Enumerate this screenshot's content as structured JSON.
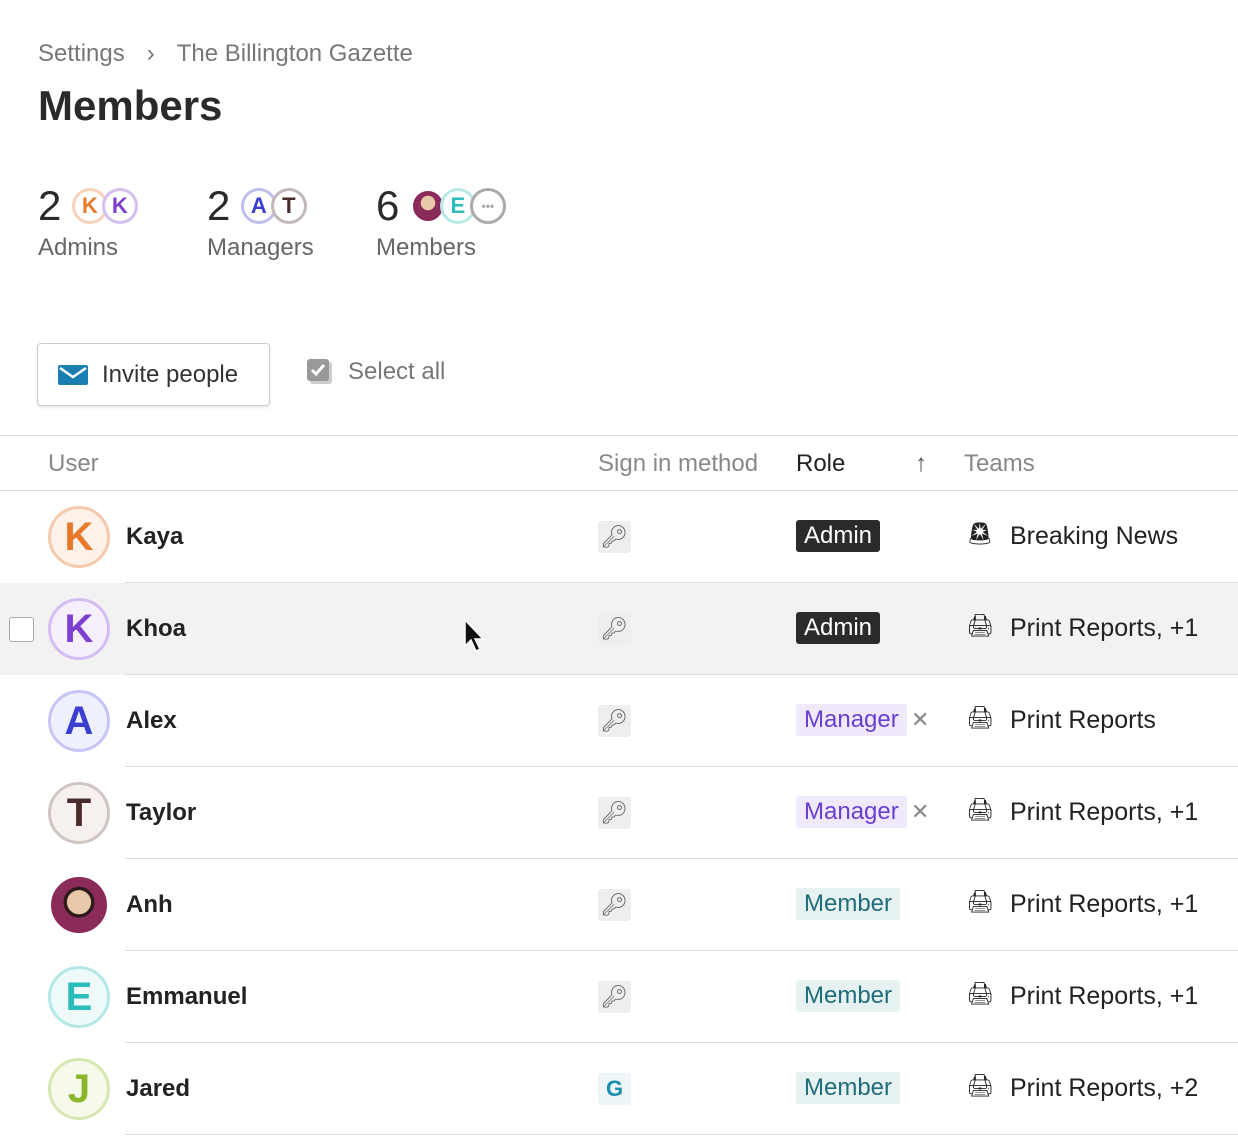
{
  "breadcrumb": {
    "root": "Settings",
    "current": "The Billington Gazette"
  },
  "title": "Members",
  "stats": [
    {
      "count": "2",
      "label": "Admins",
      "avatars": [
        {
          "letter": "K",
          "color": "#e8792b"
        },
        {
          "letter": "K",
          "color": "#7d3fd0"
        }
      ]
    },
    {
      "count": "2",
      "label": "Managers",
      "avatars": [
        {
          "letter": "A",
          "color": "#3b3fd0"
        },
        {
          "letter": "T",
          "color": "#4a2b2b"
        }
      ]
    },
    {
      "count": "6",
      "label": "Members",
      "avatars": [
        {
          "letter": "",
          "color": "#8a2b5a",
          "photo": true
        },
        {
          "letter": "E",
          "color": "#2bbcbc"
        },
        {
          "letter": "•••",
          "color": "#aaa"
        }
      ]
    }
  ],
  "toolbar": {
    "invite_label": "Invite people",
    "select_all_label": "Select all"
  },
  "table": {
    "headers": {
      "user": "User",
      "sign_in": "Sign in method",
      "role": "Role",
      "teams": "Teams",
      "sort_icon": "arrow-up"
    },
    "rows": [
      {
        "name": "Kaya",
        "letter": "K",
        "color": "#e8792b",
        "bg": "#fdf1e9",
        "border": "#f5c9ab",
        "sign_in": "key",
        "role": "Admin",
        "role_type": "admin",
        "team_icon": "siren",
        "teams": "Breaking News"
      },
      {
        "name": "Khoa",
        "letter": "K",
        "color": "#7d3fd0",
        "bg": "#f6f0fd",
        "border": "#d4bdf3",
        "sign_in": "key",
        "role": "Admin",
        "role_type": "admin",
        "team_icon": "typewriter",
        "teams": "Print Reports, +1"
      },
      {
        "name": "Alex",
        "letter": "A",
        "color": "#3b3fd0",
        "bg": "#eff0fd",
        "border": "#c5c6f5",
        "sign_in": "key",
        "role": "Manager",
        "role_type": "manager",
        "team_icon": "typewriter",
        "teams": "Print Reports"
      },
      {
        "name": "Taylor",
        "letter": "T",
        "color": "#4a2b2b",
        "bg": "#f6f1ef",
        "border": "#cfc6c2",
        "sign_in": "key",
        "role": "Manager",
        "role_type": "manager",
        "team_icon": "typewriter",
        "teams": "Print Reports, +1"
      },
      {
        "name": "Anh",
        "letter": "",
        "color": "#8a2b5a",
        "bg": "#8a2b5a",
        "border": "#8a2b5a",
        "sign_in": "key",
        "role": "Member",
        "role_type": "member",
        "team_icon": "typewriter",
        "teams": "Print Reports, +1"
      },
      {
        "name": "Emmanuel",
        "letter": "E",
        "color": "#2bbcbc",
        "bg": "#eefafa",
        "border": "#b5e7e7",
        "sign_in": "key",
        "role": "Member",
        "role_type": "member",
        "team_icon": "typewriter",
        "teams": "Print Reports, +1"
      },
      {
        "name": "Jared",
        "letter": "J",
        "color": "#8ab82a",
        "bg": "#f5faea",
        "border": "#d6e8b2",
        "sign_in": "google",
        "role": "Member",
        "role_type": "member",
        "team_icon": "typewriter",
        "teams": "Print Reports, +2"
      }
    ]
  }
}
